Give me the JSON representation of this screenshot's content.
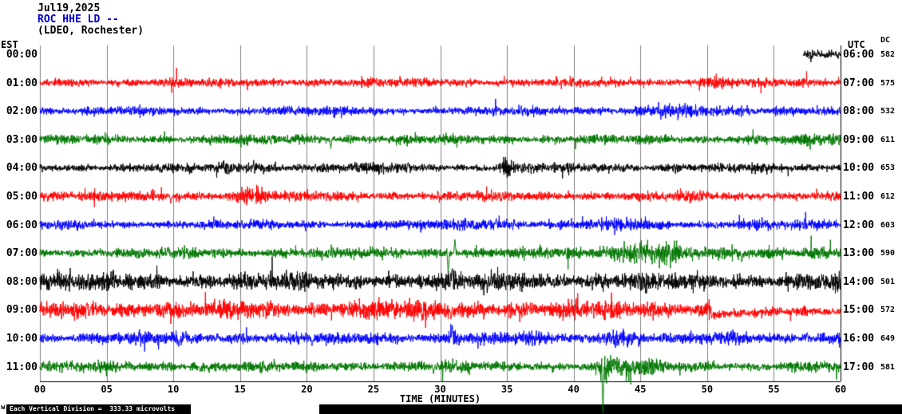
{
  "title": {
    "date": "Jul19,2025",
    "station": "ROC HHE LD --",
    "location": "(LDEO, Rochester)"
  },
  "axes": {
    "left_tz": "EST",
    "right_tz": "UTC",
    "dc_header": "DC",
    "x_title": "TIME (MINUTES)",
    "x_ticks": [
      "00",
      "05",
      "10",
      "15",
      "20",
      "25",
      "30",
      "35",
      "40",
      "45",
      "50",
      "55",
      "60"
    ],
    "x_tick_interval_min": 5
  },
  "footer": {
    "scale_note": "Each Vertical Division =  333.33 microvolts",
    "corner_mark": "w"
  },
  "colors": {
    "grid": "#808080",
    "axis": "#000000",
    "station_text": "#0000cc"
  },
  "chart_data": {
    "type": "line",
    "description": "Helicorder seismogram, 12 hourly traces, 60 minutes per line",
    "x_range_minutes": [
      0,
      60
    ],
    "rows": [
      {
        "est": "00:00",
        "utc": "06:00",
        "dc": "582",
        "color": "#000000",
        "start": 57.2,
        "amp": 3.4,
        "bursts": [
          {
            "min": 57.5,
            "dur": 0.7,
            "amp": 3
          }
        ],
        "spikes": []
      },
      {
        "est": "01:00",
        "utc": "07:00",
        "dc": "575",
        "color": "#ff0000",
        "start": 0,
        "amp": 4.3,
        "bursts": [
          {
            "min": 50.5,
            "dur": 2.5,
            "amp": 2.5
          }
        ],
        "spikes": []
      },
      {
        "est": "02:00",
        "utc": "08:00",
        "dc": "532",
        "color": "#0000ff",
        "start": 0,
        "amp": 4.3,
        "bursts": [
          {
            "min": 47.5,
            "dur": 5,
            "amp": 2.5
          },
          {
            "min": 56.5,
            "dur": 3,
            "amp": 2
          }
        ],
        "spikes": []
      },
      {
        "est": "03:00",
        "utc": "09:00",
        "dc": "611",
        "color": "#007700",
        "start": 0,
        "amp": 4.8,
        "bursts": [
          {
            "min": 57.5,
            "dur": 3,
            "amp": 2.5
          }
        ],
        "spikes": [
          {
            "min": 21.8,
            "amp": 11,
            "dir": -1
          }
        ]
      },
      {
        "est": "04:00",
        "utc": "10:00",
        "dc": "653",
        "color": "#000000",
        "start": 0,
        "amp": 4.4,
        "bursts": [
          {
            "min": 16,
            "dur": 5,
            "amp": 2
          },
          {
            "min": 35,
            "dur": 0.9,
            "amp": 11
          },
          {
            "min": 26.5,
            "dur": 3,
            "amp": 1.5
          }
        ],
        "spikes": [
          {
            "min": 27.6,
            "amp": 7,
            "dir": 1
          }
        ]
      },
      {
        "est": "05:00",
        "utc": "11:00",
        "dc": "612",
        "color": "#ff0000",
        "start": 0,
        "amp": 4.8,
        "bursts": [
          {
            "min": 15.8,
            "dur": 2.2,
            "amp": 6
          }
        ],
        "spikes": [
          {
            "min": 9.8,
            "amp": 9,
            "dir": -1
          }
        ]
      },
      {
        "est": "06:00",
        "utc": "12:00",
        "dc": "603",
        "color": "#0000ff",
        "start": 0,
        "amp": 4.5,
        "bursts": [
          {
            "min": 33,
            "dur": 5,
            "amp": 3
          },
          {
            "min": 44,
            "dur": 4,
            "amp": 2.5
          },
          {
            "min": 53.5,
            "dur": 3,
            "amp": 2
          }
        ],
        "spikes": [
          {
            "min": 34.2,
            "amp": 8,
            "dir": 1
          }
        ]
      },
      {
        "est": "07:00",
        "utc": "13:00",
        "dc": "590",
        "color": "#007700",
        "start": 0,
        "amp": 5.2,
        "bursts": [
          {
            "min": 45.5,
            "dur": 5.5,
            "amp": 10
          },
          {
            "min": 58,
            "dur": 2,
            "amp": 3
          }
        ],
        "spikes": [
          {
            "min": 30.6,
            "amp": 26,
            "dir": -1
          },
          {
            "min": 31.1,
            "amp": 18,
            "dir": 1
          },
          {
            "min": 52.6,
            "amp": 12,
            "dir": -1
          }
        ]
      },
      {
        "est": "08:00",
        "utc": "14:00",
        "dc": "501",
        "color": "#000000",
        "start": 0,
        "amp": 8.5,
        "bursts": [
          {
            "min": 36.5,
            "dur": 3,
            "amp": 3
          }
        ],
        "spikes": [
          {
            "min": 30.9,
            "amp": 16,
            "dir": 1
          }
        ]
      },
      {
        "est": "09:00",
        "utc": "15:00",
        "dc": "572",
        "color": "#ff0000",
        "start": 0,
        "amp": 8.5,
        "bursts": [
          {
            "min": 25,
            "dur": 4,
            "amp": 2
          }
        ],
        "spikes": [
          {
            "min": 30.8,
            "amp": 13,
            "dir": -1
          }
        ],
        "step": {
          "min": 50.3,
          "amp_after": 4.2,
          "shift": 7,
          "recover": 2.5
        }
      },
      {
        "est": "10:00",
        "utc": "16:00",
        "dc": "649",
        "color": "#0000ff",
        "start": 0,
        "amp": 5.8,
        "bursts": [
          {
            "min": 43.5,
            "dur": 2.5,
            "amp": 6
          },
          {
            "min": 31,
            "dur": 1,
            "amp": 5
          }
        ],
        "spikes": [
          {
            "min": 10.4,
            "amp": 11,
            "dir": -1
          },
          {
            "min": 20.4,
            "amp": 9,
            "dir": -1
          },
          {
            "min": 30.9,
            "amp": 14,
            "dir": 1
          },
          {
            "min": 57.5,
            "amp": 8,
            "dir": 1
          }
        ]
      },
      {
        "est": "11:00",
        "utc": "17:00",
        "dc": "581",
        "color": "#007700",
        "start": 0,
        "amp": 5.2,
        "bursts": [
          {
            "min": 42.3,
            "dur": 0.8,
            "amp": 12
          },
          {
            "min": 44.5,
            "dur": 4,
            "amp": 5
          }
        ],
        "spikes": [
          {
            "min": 42.2,
            "amp": 58,
            "dir": -1
          },
          {
            "min": 12,
            "amp": 7,
            "dir": -1
          },
          {
            "min": 29.5,
            "amp": 8,
            "dir": -1
          }
        ]
      }
    ]
  }
}
